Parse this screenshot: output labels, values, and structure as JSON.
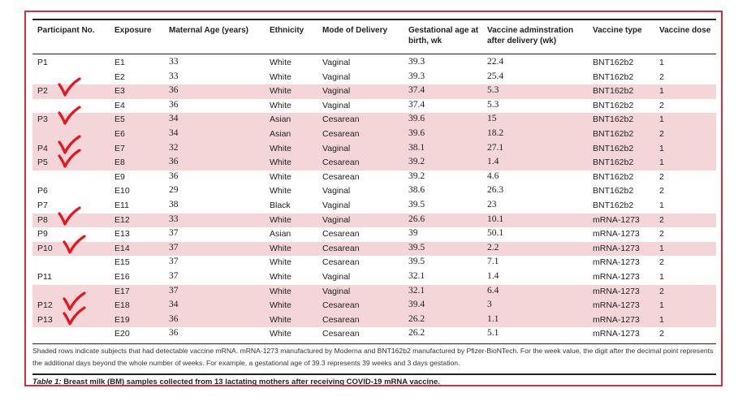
{
  "table": {
    "columns": [
      "Participant No.",
      "Exposure",
      "Maternal Age (years)",
      "Ethnicity",
      "Mode of Delivery",
      "Gestational age at birth, wk",
      "Vaccine adminstration after delivery (wk)",
      "Vaccine type",
      "Vaccine dose"
    ],
    "rows": [
      {
        "participant": "P1",
        "exposure": "E1",
        "age": "33",
        "ethnicity": "White",
        "delivery": "Vaginal",
        "gest_age": "39.3",
        "admin_wk": "22.4",
        "vaccine": "BNT162b2",
        "dose": "1",
        "shaded": false
      },
      {
        "participant": "",
        "exposure": "E2",
        "age": "33",
        "ethnicity": "White",
        "delivery": "Vaginal",
        "gest_age": "39.3",
        "admin_wk": "25.4",
        "vaccine": "BNT162b2",
        "dose": "2",
        "shaded": false
      },
      {
        "participant": "P2",
        "exposure": "E3",
        "age": "36",
        "ethnicity": "White",
        "delivery": "Vaginal",
        "gest_age": "37.4",
        "admin_wk": "5.3",
        "vaccine": "BNT162b2",
        "dose": "1",
        "shaded": true
      },
      {
        "participant": "",
        "exposure": "E4",
        "age": "36",
        "ethnicity": "White",
        "delivery": "Vaginal",
        "gest_age": "37.4",
        "admin_wk": "5.3",
        "vaccine": "BNT162b2",
        "dose": "2",
        "shaded": false
      },
      {
        "participant": "P3",
        "exposure": "E5",
        "age": "34",
        "ethnicity": "Asian",
        "delivery": "Cesarean",
        "gest_age": "39.6",
        "admin_wk": "15",
        "vaccine": "BNT162b2",
        "dose": "1",
        "shaded": true
      },
      {
        "participant": "",
        "exposure": "E6",
        "age": "34",
        "ethnicity": "Asian",
        "delivery": "Cesarean",
        "gest_age": "39.6",
        "admin_wk": "18.2",
        "vaccine": "BNT162b2",
        "dose": "2",
        "shaded": true
      },
      {
        "participant": "P4",
        "exposure": "E7",
        "age": "32",
        "ethnicity": "White",
        "delivery": "Vaginal",
        "gest_age": "38.1",
        "admin_wk": "27.1",
        "vaccine": "BNT162b2",
        "dose": "1",
        "shaded": true
      },
      {
        "participant": "P5",
        "exposure": "E8",
        "age": "36",
        "ethnicity": "White",
        "delivery": "Cesarean",
        "gest_age": "39.2",
        "admin_wk": "1.4",
        "vaccine": "BNT162b2",
        "dose": "1",
        "shaded": true
      },
      {
        "participant": "",
        "exposure": "E9",
        "age": "36",
        "ethnicity": "White",
        "delivery": "Cesarean",
        "gest_age": "39.2",
        "admin_wk": "4.6",
        "vaccine": "BNT162b2",
        "dose": "2",
        "shaded": false
      },
      {
        "participant": "P6",
        "exposure": "E10",
        "age": "29",
        "ethnicity": "White",
        "delivery": "Vaginal",
        "gest_age": "38.6",
        "admin_wk": "26.3",
        "vaccine": "BNT162b2",
        "dose": "2",
        "shaded": false
      },
      {
        "participant": "P7",
        "exposure": "E11",
        "age": "38",
        "ethnicity": "Black",
        "delivery": "Vaginal",
        "gest_age": "39.5",
        "admin_wk": "23",
        "vaccine": "BNT162b2",
        "dose": "1",
        "shaded": false
      },
      {
        "participant": "P8",
        "exposure": "E12",
        "age": "33",
        "ethnicity": "White",
        "delivery": "Vaginal",
        "gest_age": "26.6",
        "admin_wk": "10.1",
        "vaccine": "mRNA-1273",
        "dose": "2",
        "shaded": true
      },
      {
        "participant": "P9",
        "exposure": "E13",
        "age": "37",
        "ethnicity": "Asian",
        "delivery": "Cesarean",
        "gest_age": "39",
        "admin_wk": "50.1",
        "vaccine": "mRNA-1273",
        "dose": "2",
        "shaded": false
      },
      {
        "participant": "P10",
        "exposure": "E14",
        "age": "37",
        "ethnicity": "White",
        "delivery": "Cesarean",
        "gest_age": "39.5",
        "admin_wk": "2.2",
        "vaccine": "mRNA-1273",
        "dose": "1",
        "shaded": true
      },
      {
        "participant": "",
        "exposure": "E15",
        "age": "37",
        "ethnicity": "White",
        "delivery": "Cesarean",
        "gest_age": "39.5",
        "admin_wk": "7.1",
        "vaccine": "mRNA-1273",
        "dose": "2",
        "shaded": false
      },
      {
        "participant": "P11",
        "exposure": "E16",
        "age": "37",
        "ethnicity": "White",
        "delivery": "Vaginal",
        "gest_age": "32.1",
        "admin_wk": "1.4",
        "vaccine": "mRNA-1273",
        "dose": "1",
        "shaded": false
      },
      {
        "participant": "",
        "exposure": "E17",
        "age": "37",
        "ethnicity": "White",
        "delivery": "Vaginal",
        "gest_age": "32.1",
        "admin_wk": "6.4",
        "vaccine": "mRNA-1273",
        "dose": "2",
        "shaded": true
      },
      {
        "participant": "P12",
        "exposure": "E18",
        "age": "34",
        "ethnicity": "White",
        "delivery": "Cesarean",
        "gest_age": "39.4",
        "admin_wk": "3",
        "vaccine": "mRNA-1273",
        "dose": "1",
        "shaded": true
      },
      {
        "participant": "P13",
        "exposure": "E19",
        "age": "36",
        "ethnicity": "White",
        "delivery": "Cesarean",
        "gest_age": "26.2",
        "admin_wk": "1.1",
        "vaccine": "mRNA-1273",
        "dose": "1",
        "shaded": true
      },
      {
        "participant": "",
        "exposure": "E20",
        "age": "36",
        "ethnicity": "White",
        "delivery": "Cesarean",
        "gest_age": "26.2",
        "admin_wk": "5.1",
        "vaccine": "mRNA-1273",
        "dose": "2",
        "shaded": false
      }
    ]
  },
  "footnote": "Shaded rows indicate subjects that had detectable vaccine mRNA. mRNA-1273 manufactured by Moderna and BNT162b2 manufactured by Pfizer-BioNTech. For the week value, the digit after the decimal point represents the additional days beyond the whole number of weeks. For example, a gestational age of 39.3 represents 39 weeks and 3 days gestation.",
  "caption": {
    "label": "Table 1:",
    "text": "Breast milk (BM) samples collected from 13 lactating mothers after receiving COVID-19 mRNA vaccine."
  },
  "annotations": {
    "mark": "hand-drawn checkmark",
    "color": "#e8141e",
    "marked_participants": [
      "P2",
      "P3",
      "P4",
      "P5",
      "P8",
      "P10",
      "P12",
      "P13"
    ]
  },
  "colors": {
    "shaded_row": "#f4d6d9",
    "frame_border": "#d0304a"
  }
}
